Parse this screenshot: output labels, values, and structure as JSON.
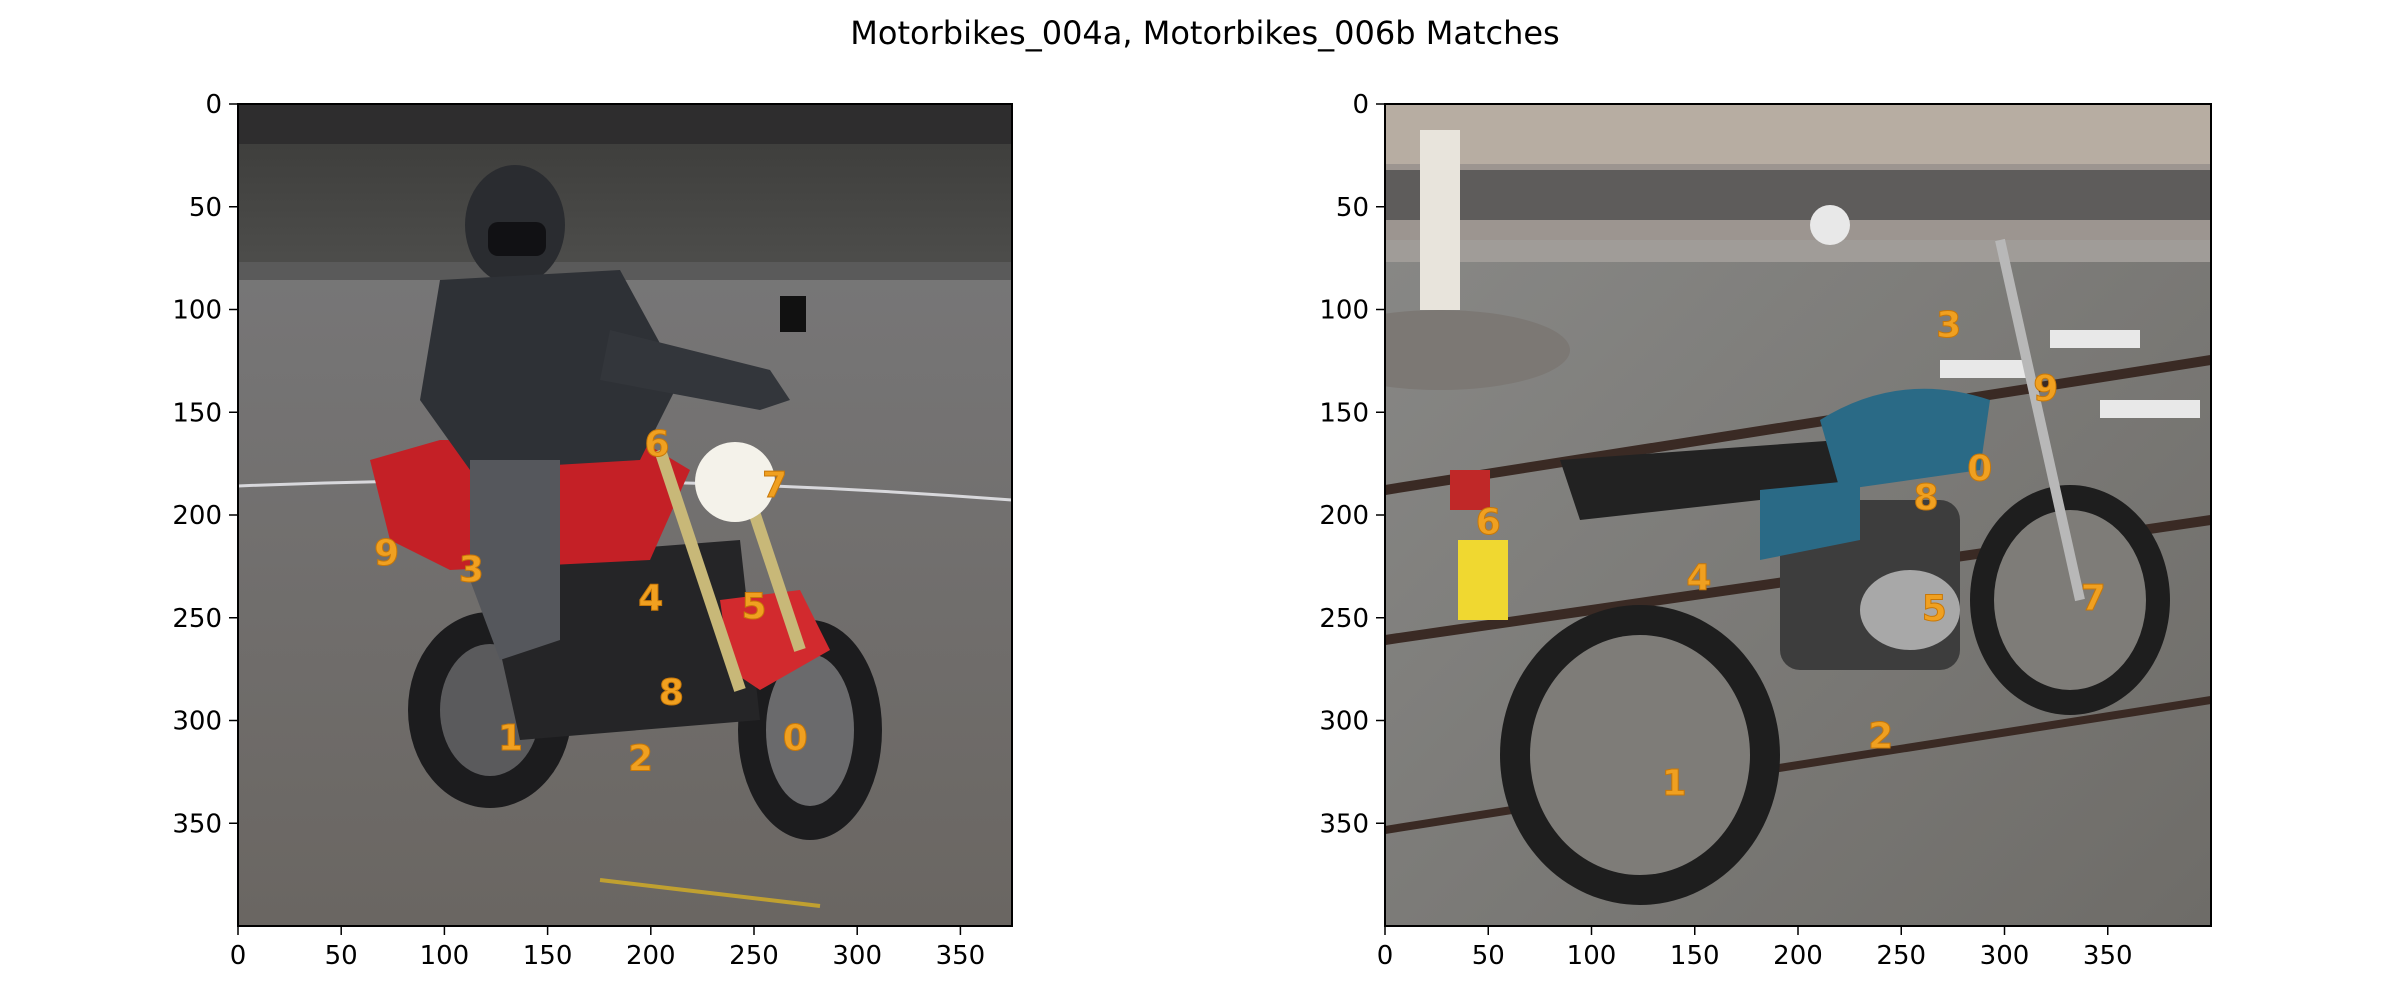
{
  "figure": {
    "title": "Motorbikes_004a, Motorbikes_006b Matches",
    "label_color": "#f0a020"
  },
  "chart_data": [
    {
      "type": "image",
      "name": "Motorbikes_004a",
      "image_subject": "person in black riding jacket and helmet on a red motorbike on asphalt",
      "xlim": [
        0,
        375
      ],
      "ylim": [
        400,
        0
      ],
      "xticks": [
        0,
        50,
        100,
        150,
        200,
        250,
        300,
        350
      ],
      "yticks": [
        0,
        50,
        100,
        150,
        200,
        250,
        300,
        350
      ],
      "keypoints": [
        {
          "label": "0",
          "x": 270,
          "y": 308
        },
        {
          "label": "1",
          "x": 132,
          "y": 308
        },
        {
          "label": "2",
          "x": 195,
          "y": 318
        },
        {
          "label": "3",
          "x": 113,
          "y": 226
        },
        {
          "label": "4",
          "x": 200,
          "y": 240
        },
        {
          "label": "5",
          "x": 250,
          "y": 244
        },
        {
          "label": "6",
          "x": 203,
          "y": 165
        },
        {
          "label": "7",
          "x": 260,
          "y": 185
        },
        {
          "label": "8",
          "x": 210,
          "y": 286
        },
        {
          "label": "9",
          "x": 72,
          "y": 218
        }
      ]
    },
    {
      "type": "image",
      "name": "Motorbikes_006b",
      "image_subject": "parked blue Yamaha motorcycle by a railing on a city street",
      "xlim": [
        0,
        400
      ],
      "ylim": [
        400,
        0
      ],
      "xticks": [
        0,
        50,
        100,
        150,
        200,
        250,
        300,
        350
      ],
      "yticks": [
        0,
        50,
        100,
        150,
        200,
        250,
        300,
        350
      ],
      "keypoints": [
        {
          "label": "0",
          "x": 288,
          "y": 177
        },
        {
          "label": "1",
          "x": 140,
          "y": 330
        },
        {
          "label": "2",
          "x": 240,
          "y": 307
        },
        {
          "label": "3",
          "x": 273,
          "y": 107
        },
        {
          "label": "4",
          "x": 152,
          "y": 230
        },
        {
          "label": "5",
          "x": 266,
          "y": 245
        },
        {
          "label": "6",
          "x": 50,
          "y": 203
        },
        {
          "label": "7",
          "x": 343,
          "y": 240
        },
        {
          "label": "8",
          "x": 262,
          "y": 191
        },
        {
          "label": "9",
          "x": 320,
          "y": 138
        }
      ]
    }
  ]
}
